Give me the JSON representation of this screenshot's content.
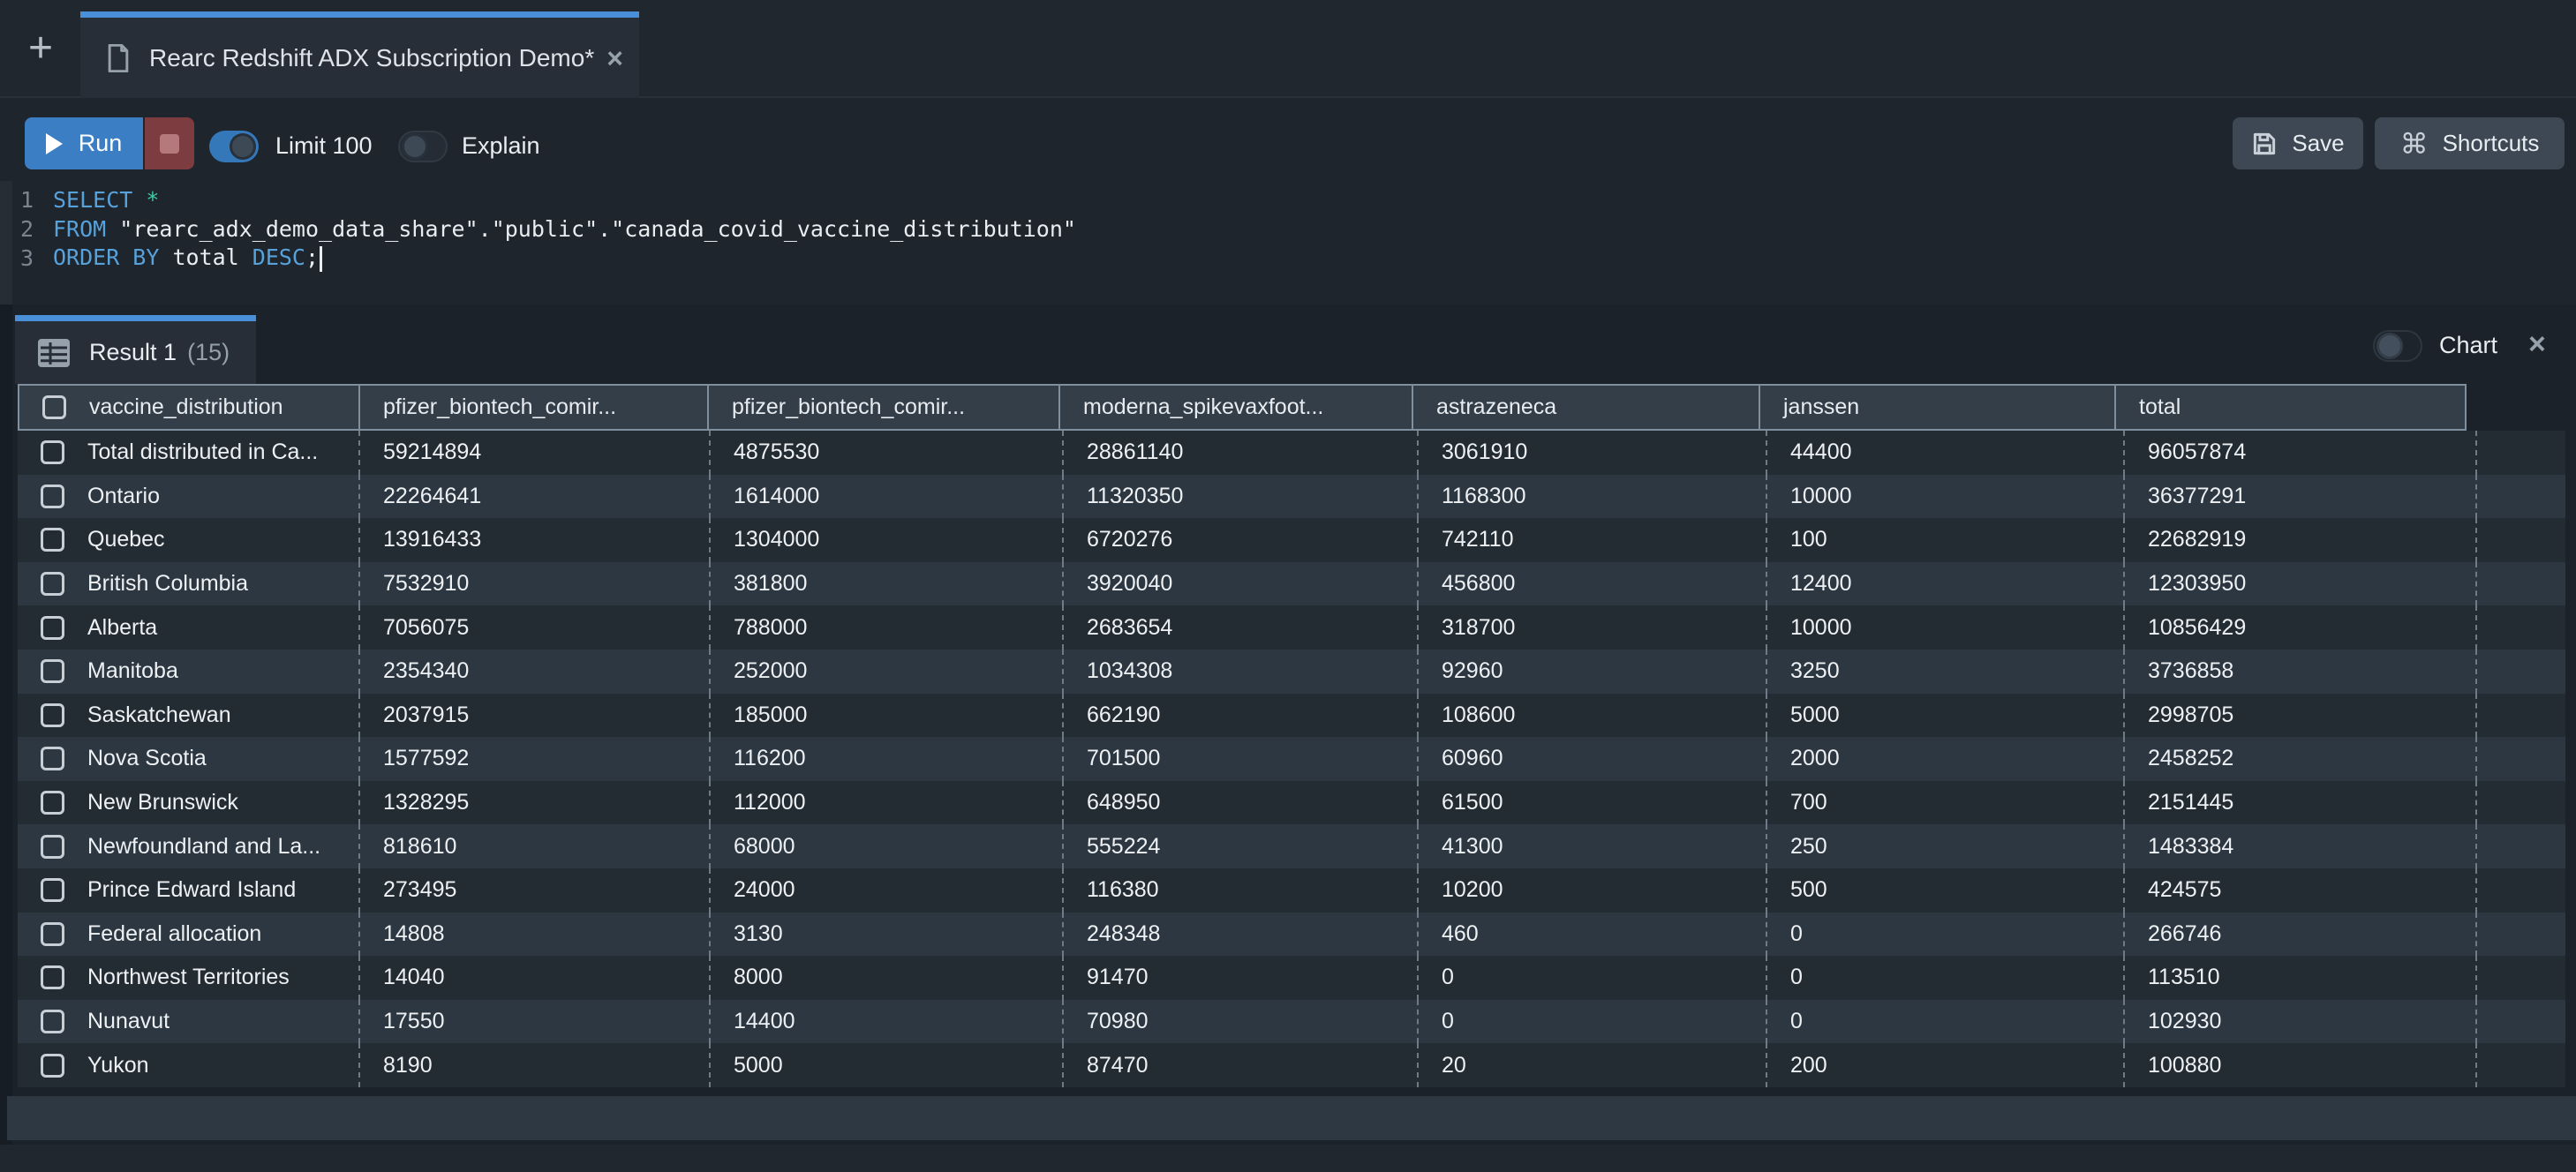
{
  "colors": {
    "accent_blue": "#4a90d8",
    "run_blue": "#3b7ec4",
    "stop_red": "#7d3c40",
    "keyword_blue": "#57a2da",
    "operator_teal": "#3fc9a4",
    "header_cell_bg": "#333e49",
    "row_dark": "#232b33",
    "row_light": "#2d3741"
  },
  "tab_bar": {
    "new_tab_glyph": "+",
    "active_tab": {
      "title": "Rearc Redshift ADX Subscription Demo*",
      "close_glyph": "×"
    }
  },
  "toolbar": {
    "run_label": "Run",
    "limit_toggle": {
      "label": "Limit 100",
      "state": "on"
    },
    "explain_toggle": {
      "label": "Explain",
      "state": "off"
    },
    "save_label": "Save",
    "shortcuts_label": "Shortcuts",
    "shortcuts_glyph": "⌘"
  },
  "editor": {
    "lines": [
      {
        "number": "1",
        "cursor": false,
        "segments": [
          {
            "text": "SELECT",
            "style": "keyword"
          },
          {
            "text": " ",
            "style": "plain"
          },
          {
            "text": "*",
            "style": "operator"
          }
        ]
      },
      {
        "number": "2",
        "cursor": false,
        "segments": [
          {
            "text": "FROM",
            "style": "keyword"
          },
          {
            "text": " \"rearc_adx_demo_data_share\".\"public\".\"canada_covid_vaccine_distribution\"",
            "style": "plain"
          }
        ]
      },
      {
        "number": "3",
        "cursor": true,
        "segments": [
          {
            "text": "ORDER BY",
            "style": "keyword"
          },
          {
            "text": " total ",
            "style": "plain"
          },
          {
            "text": "DESC",
            "style": "keyword"
          },
          {
            "text": ";",
            "style": "plain"
          }
        ]
      }
    ]
  },
  "results": {
    "tab_label": "Result 1",
    "tab_count": "(15)",
    "chart_toggle": {
      "label": "Chart",
      "state": "off"
    },
    "close_glyph": "×",
    "table": {
      "columns": [
        "vaccine_distribution",
        "pfizer_biontech_comir...",
        "pfizer_biontech_comir...",
        "moderna_spikevaxfoot...",
        "astrazeneca",
        "janssen",
        "total"
      ],
      "rows": [
        [
          "Total distributed in Ca...",
          "59214894",
          "4875530",
          "28861140",
          "3061910",
          "44400",
          "96057874"
        ],
        [
          "Ontario",
          "22264641",
          "1614000",
          "11320350",
          "1168300",
          "10000",
          "36377291"
        ],
        [
          "Quebec",
          "13916433",
          "1304000",
          "6720276",
          "742110",
          "100",
          "22682919"
        ],
        [
          "British Columbia",
          "7532910",
          "381800",
          "3920040",
          "456800",
          "12400",
          "12303950"
        ],
        [
          "Alberta",
          "7056075",
          "788000",
          "2683654",
          "318700",
          "10000",
          "10856429"
        ],
        [
          "Manitoba",
          "2354340",
          "252000",
          "1034308",
          "92960",
          "3250",
          "3736858"
        ],
        [
          "Saskatchewan",
          "2037915",
          "185000",
          "662190",
          "108600",
          "5000",
          "2998705"
        ],
        [
          "Nova Scotia",
          "1577592",
          "116200",
          "701500",
          "60960",
          "2000",
          "2458252"
        ],
        [
          "New Brunswick",
          "1328295",
          "112000",
          "648950",
          "61500",
          "700",
          "2151445"
        ],
        [
          "Newfoundland and La...",
          "818610",
          "68000",
          "555224",
          "41300",
          "250",
          "1483384"
        ],
        [
          "Prince Edward Island",
          "273495",
          "24000",
          "116380",
          "10200",
          "500",
          "424575"
        ],
        [
          "Federal allocation",
          "14808",
          "3130",
          "248348",
          "460",
          "0",
          "266746"
        ],
        [
          "Northwest Territories",
          "14040",
          "8000",
          "91470",
          "0",
          "0",
          "113510"
        ],
        [
          "Nunavut",
          "17550",
          "14400",
          "70980",
          "0",
          "0",
          "102930"
        ],
        [
          "Yukon",
          "8190",
          "5000",
          "87470",
          "20",
          "200",
          "100880"
        ]
      ]
    }
  }
}
